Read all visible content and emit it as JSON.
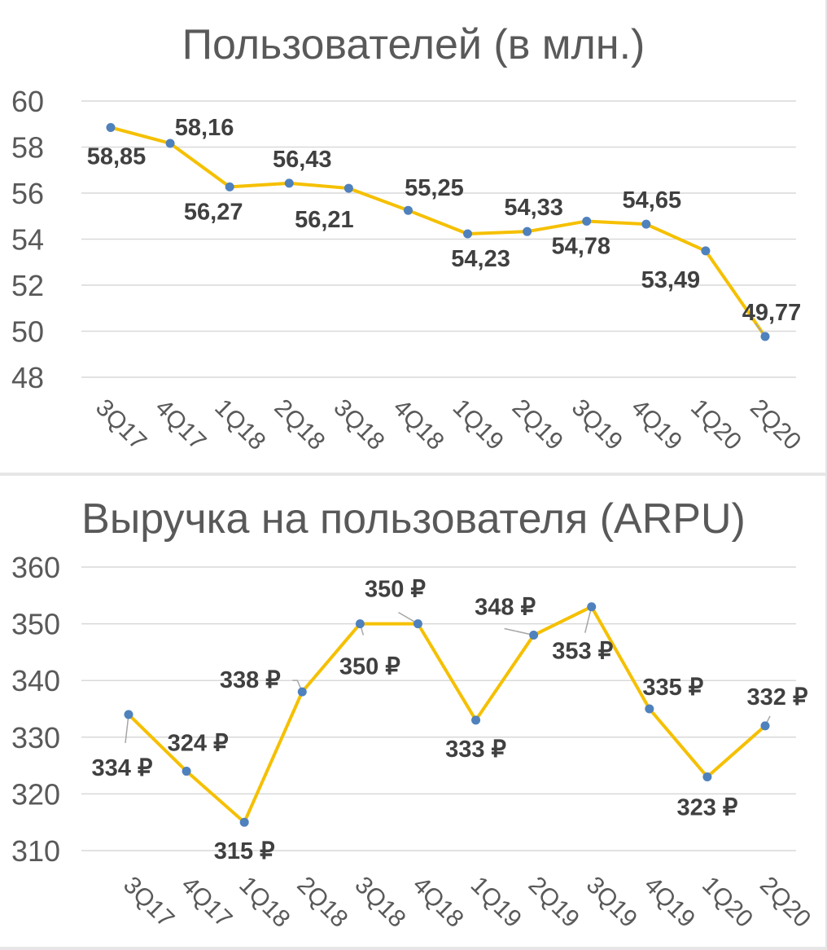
{
  "colors": {
    "line": "#F5C000",
    "marker": "#4F81BD",
    "text": "#595959",
    "label": "#404040",
    "grid": "#D9D9D9"
  },
  "chart_data": [
    {
      "type": "line",
      "title": "Пользователей (в млн.)",
      "categories": [
        "3Q17",
        "4Q17",
        "1Q18",
        "2Q18",
        "3Q18",
        "4Q18",
        "1Q19",
        "2Q19",
        "3Q19",
        "4Q19",
        "1Q20",
        "2Q20"
      ],
      "values": [
        58.85,
        58.16,
        56.27,
        56.43,
        56.21,
        55.25,
        54.23,
        54.33,
        54.78,
        54.65,
        53.49,
        49.77
      ],
      "data_labels": [
        "58,85",
        "58,16",
        "56,27",
        "56,43",
        "56,21",
        "55,25",
        "54,23",
        "54,33",
        "54,78",
        "54,65",
        "53,49",
        "49,77"
      ],
      "yticks": [
        "60",
        "58",
        "56",
        "54",
        "52",
        "50",
        "48"
      ],
      "ylim": [
        48,
        60
      ],
      "grid": true,
      "legend": "none"
    },
    {
      "type": "line",
      "title": "Выручка на пользователя (ARPU)",
      "categories": [
        "3Q17",
        "4Q17",
        "1Q18",
        "2Q18",
        "3Q18",
        "4Q18",
        "1Q19",
        "2Q19",
        "3Q19",
        "4Q19",
        "1Q20",
        "2Q20"
      ],
      "values": [
        334,
        324,
        315,
        338,
        350,
        350,
        333,
        348,
        353,
        335,
        323,
        332
      ],
      "data_labels": [
        "334 ₽",
        "324 ₽",
        "315 ₽",
        "338 ₽",
        "350 ₽",
        "350 ₽",
        "333 ₽",
        "348 ₽",
        "353 ₽",
        "335 ₽",
        "323 ₽",
        "332 ₽"
      ],
      "yticks": [
        "360",
        "350",
        "340",
        "330",
        "320",
        "310"
      ],
      "ylim": [
        310,
        360
      ],
      "grid": true,
      "legend": "none"
    }
  ]
}
